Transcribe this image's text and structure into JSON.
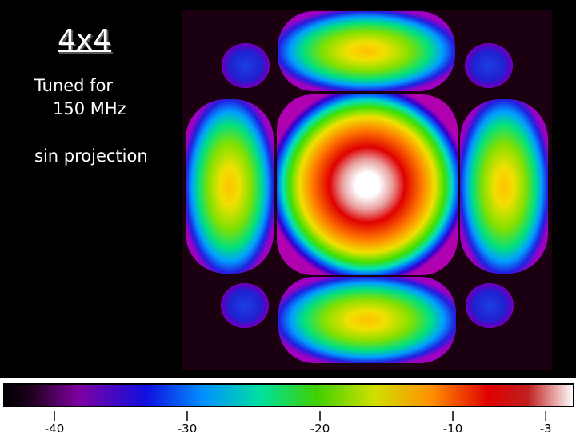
{
  "title": "4x4",
  "notes": [
    "Tuned for",
    "150 MHz",
    "sin projection"
  ],
  "colorbar": {
    "ticks": [
      -40,
      -30,
      -20,
      -10,
      -3
    ]
  }
}
